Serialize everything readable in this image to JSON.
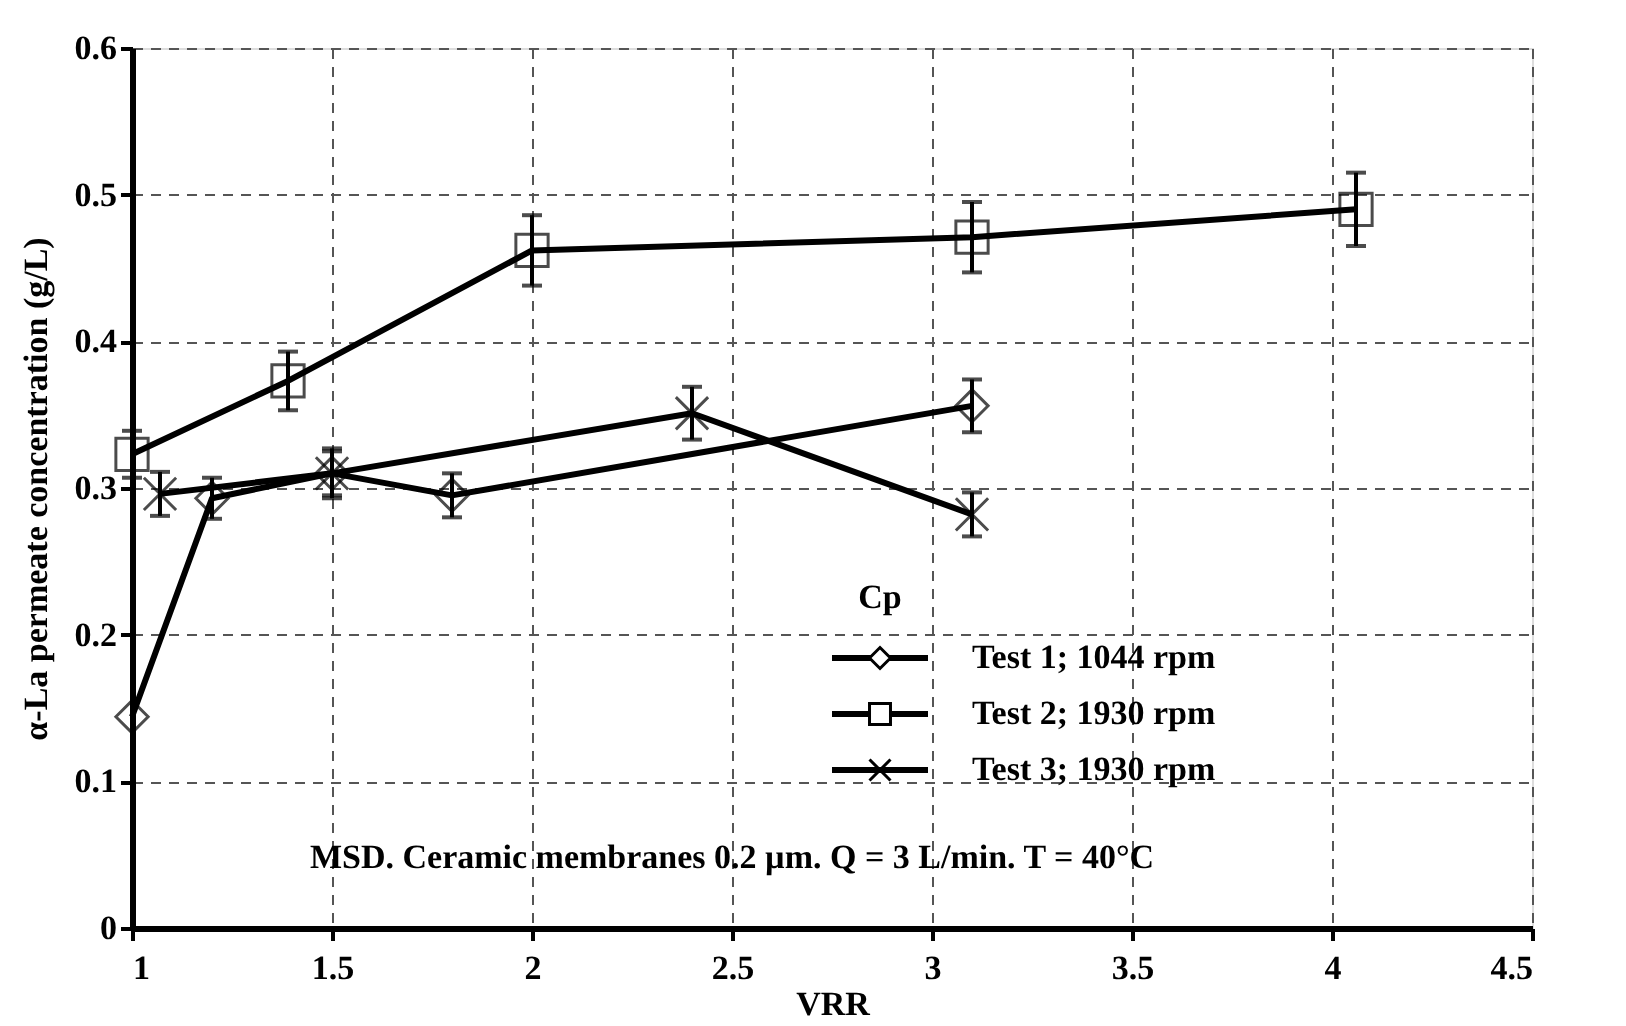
{
  "chart_data": {
    "type": "line",
    "xlabel": "VRR",
    "ylabel": "α-La permeate concentration (g/L)",
    "legend_title": "Cp",
    "xlim": [
      1,
      4.5
    ],
    "xticks": [
      1,
      1.5,
      2,
      2.5,
      3,
      3.5,
      4,
      4.5
    ],
    "ylim": [
      0,
      0.6
    ],
    "yticks": [
      0,
      0.1,
      0.2,
      0.3,
      0.4,
      0.5,
      0.6
    ],
    "grid": true,
    "legend": "bottom right",
    "line_style": "solid",
    "annotations": [
      "MSD. Ceramic membranes 0.2 µm. Q = 3 L/min. T = 40°C"
    ],
    "series": [
      {
        "name": "Test 1; 1044 rpm",
        "color": "#000000",
        "marker": "diamond",
        "x": [
          1,
          1.2,
          1.5,
          1.8,
          3.1
        ],
        "values": [
          0.144,
          0.293,
          0.31,
          0.295,
          0.356
        ],
        "errors": [
          null,
          0.014,
          0.015,
          0.015,
          0.018
        ]
      },
      {
        "name": "Test 2; 1930 rpm",
        "color": "#000000",
        "marker": "square",
        "x": [
          1,
          1.39,
          2,
          3.1,
          4.06
        ],
        "values": [
          0.323,
          0.373,
          0.462,
          0.471,
          0.49
        ],
        "errors": [
          0.016,
          0.02,
          0.024,
          0.024,
          0.025
        ]
      },
      {
        "name": "Test 3; 1930 rpm",
        "color": "#000000",
        "marker": "cross",
        "x": [
          1.07,
          1.5,
          2.4,
          3.1
        ],
        "values": [
          0.296,
          0.31,
          0.351,
          0.282
        ],
        "errors": [
          0.015,
          0.017,
          0.018,
          0.015
        ]
      }
    ]
  }
}
